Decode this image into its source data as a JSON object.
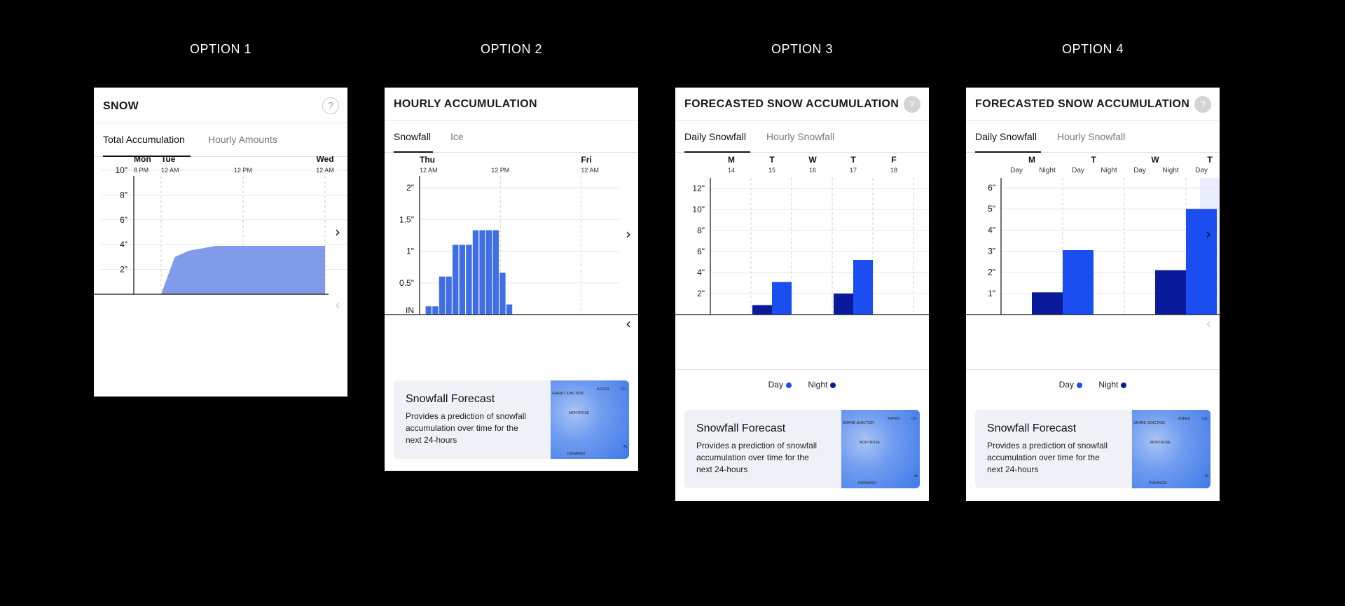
{
  "options": [
    {
      "title": "OPTION 1"
    },
    {
      "title": "OPTION 2"
    },
    {
      "title": "OPTION 3"
    },
    {
      "title": "OPTION 4"
    }
  ],
  "card1": {
    "title": "SNOW",
    "help": "?",
    "tabs": [
      "Total Accumulation",
      "Hourly Amounts"
    ],
    "chart_data": {
      "type": "area",
      "x_ticks": [
        {
          "day": "Mon",
          "time": "8 PM"
        },
        {
          "day": "Tue",
          "time": "12 AM"
        },
        {
          "day": "",
          "time": "12 PM"
        },
        {
          "day": "Wed",
          "time": "12 AM"
        }
      ],
      "y_ticks": [
        "10\"",
        "8\"",
        "6\"",
        "4\"",
        "2\""
      ],
      "ylim": [
        0,
        10
      ],
      "x_hours": [
        0,
        4,
        6,
        8,
        10,
        12,
        16,
        24,
        28
      ],
      "values": [
        0,
        0,
        3.0,
        3.5,
        3.7,
        3.9,
        3.9,
        3.9,
        3.9
      ]
    }
  },
  "card2": {
    "title": "HOURLY ACCUMULATION",
    "tabs": [
      "Snowfall",
      "Ice"
    ],
    "chart_data": {
      "type": "bar",
      "x_ticks": [
        {
          "day": "Thu",
          "time": "12 AM"
        },
        {
          "day": "",
          "time": "12 PM"
        },
        {
          "day": "Fri",
          "time": "12 AM"
        }
      ],
      "y_ticks": [
        "2\"",
        "1.5\"",
        "1\"",
        "0.5\"",
        "IN"
      ],
      "ylim": [
        0,
        2
      ],
      "hours": [
        1,
        2,
        3,
        4,
        5,
        6,
        7,
        8,
        9,
        10,
        11,
        12,
        13
      ],
      "values": [
        0.13,
        0.13,
        0.6,
        0.6,
        1.1,
        1.1,
        1.1,
        1.33,
        1.33,
        1.33,
        1.33,
        0.66,
        0.16
      ]
    },
    "info": {
      "title": "Snowfall Forecast",
      "text": "Provides a prediction of snowfall accumulation over time for the next 24-hours"
    }
  },
  "card3": {
    "title": "FORECASTED SNOW ACCUMULATION",
    "help": "?",
    "tabs": [
      "Daily Snowfall",
      "Hourly Snowfall"
    ],
    "chart_data": {
      "type": "bar",
      "categories": [
        {
          "day": "M",
          "date": "14"
        },
        {
          "day": "T",
          "date": "15"
        },
        {
          "day": "W",
          "date": "16"
        },
        {
          "day": "T",
          "date": "17"
        },
        {
          "day": "F",
          "date": "18"
        }
      ],
      "y_ticks": [
        "12\"",
        "10\"",
        "8\"",
        "6\"",
        "4\"",
        "2\""
      ],
      "ylim": [
        0,
        12
      ],
      "series": [
        {
          "name": "Night",
          "color": "#0a1a9c",
          "values": [
            0,
            0.9,
            0,
            2.0,
            0
          ]
        },
        {
          "name": "Day",
          "color": "#1a4ef0",
          "values": [
            0,
            3.1,
            0,
            5.2,
            0
          ]
        }
      ]
    },
    "legend": [
      "Day",
      "Night"
    ],
    "info": {
      "title": "Snowfall Forecast",
      "text": "Provides a prediction of snowfall accumulation over time for the next 24-hours"
    }
  },
  "card4": {
    "title": "FORECASTED SNOW ACCUMULATION",
    "help": "?",
    "tabs": [
      "Daily Snowfall",
      "Hourly Snowfall"
    ],
    "chart_data": {
      "type": "bar",
      "categories": [
        {
          "day": "M",
          "subs": [
            "Day",
            "Night"
          ]
        },
        {
          "day": "T",
          "subs": [
            "Day",
            "Night"
          ]
        },
        {
          "day": "W",
          "subs": [
            "Day",
            "Night"
          ]
        },
        {
          "day": "T",
          "subs": [
            "Day"
          ]
        }
      ],
      "y_ticks": [
        "6\"",
        "5\"",
        "4\"",
        "3\"",
        "2\"",
        "1\""
      ],
      "ylim": [
        0,
        6
      ],
      "bars": [
        {
          "slot": 1,
          "series": "Night",
          "value": 1.05
        },
        {
          "slot": 2,
          "series": "Day",
          "value": 3.05
        },
        {
          "slot": 5,
          "series": "Night",
          "value": 2.1
        },
        {
          "slot": 6,
          "series": "Day",
          "value": 5.0
        }
      ],
      "colors": {
        "Day": "#1a4ef0",
        "Night": "#0a1a9c"
      }
    },
    "legend": [
      "Day",
      "Night"
    ],
    "info": {
      "title": "Snowfall Forecast",
      "text": "Provides a prediction of snowfall accumulation over time for the next 24-hours"
    }
  },
  "map_labels": [
    "GRAND JUNCTION",
    "ASPEN",
    "CO",
    "MONTROSE",
    "DURANGO",
    "AL"
  ],
  "icons": {
    "next": "chevron-right-icon",
    "prev": "chevron-left-icon",
    "help": "question-icon"
  }
}
